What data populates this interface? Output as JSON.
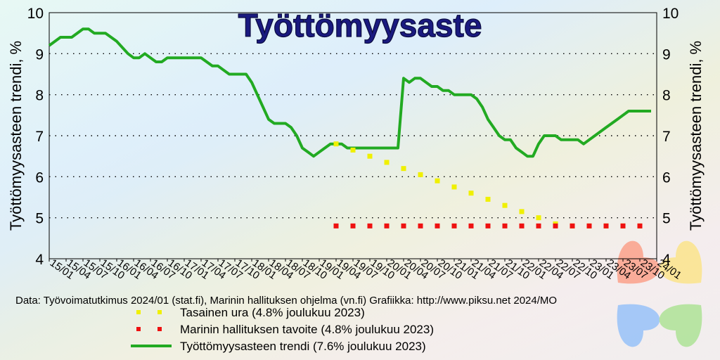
{
  "chart_data": {
    "type": "line",
    "title": "Työttömyysaste",
    "ylabel_left": "Työttömyysasteen trendi, %",
    "ylabel_right": "Työttömyysasteen trendi, %",
    "ylim": [
      4,
      10
    ],
    "yticks": [
      "4",
      "5",
      "6",
      "7",
      "8",
      "9",
      "10"
    ],
    "grid": true,
    "x_tick_labels": [
      "15/01",
      "15/04",
      "15/07",
      "15/10",
      "16/01",
      "16/04",
      "16/07",
      "16/10",
      "17/01",
      "17/04",
      "17/07",
      "17/10",
      "18/01",
      "18/04",
      "18/07",
      "18/10",
      "19/01",
      "19/04",
      "19/07",
      "19/10",
      "20/01",
      "20/04",
      "20/07",
      "20/10",
      "21/01",
      "21/04",
      "21/07",
      "21/10",
      "22/01",
      "22/04",
      "22/07",
      "22/10",
      "23/01",
      "23/04",
      "23/07",
      "23/10",
      "24/01"
    ],
    "x_start": "2015-01",
    "x_end": "2024-01",
    "series": [
      {
        "name": "Työttömyysasteen trendi (7.6% joulukuu 2023)",
        "style": "line",
        "color": "#22aa22",
        "x": [
          "2015-01",
          "2015-03",
          "2015-05",
          "2015-07",
          "2015-08",
          "2015-09",
          "2015-11",
          "2016-01",
          "2016-03",
          "2016-04",
          "2016-05",
          "2016-06",
          "2016-07",
          "2016-08",
          "2016-09",
          "2016-10",
          "2016-12",
          "2017-02",
          "2017-03",
          "2017-04",
          "2017-05",
          "2017-06",
          "2017-07",
          "2017-08",
          "2017-09",
          "2017-10",
          "2017-11",
          "2017-12",
          "2018-01",
          "2018-02",
          "2018-03",
          "2018-04",
          "2018-05",
          "2018-06",
          "2018-07",
          "2018-08",
          "2018-09",
          "2018-10",
          "2018-11",
          "2018-12",
          "2019-01",
          "2019-02",
          "2019-03",
          "2019-04",
          "2019-05",
          "2019-06",
          "2019-07",
          "2019-08",
          "2019-10",
          "2020-01",
          "2020-03",
          "2020-04",
          "2020-05",
          "2020-06",
          "2020-07",
          "2020-08",
          "2020-09",
          "2020-10",
          "2020-11",
          "2020-12",
          "2021-01",
          "2021-02",
          "2021-03",
          "2021-04",
          "2021-05",
          "2021-06",
          "2021-07",
          "2021-08",
          "2021-09",
          "2021-10",
          "2021-11",
          "2021-12",
          "2022-01",
          "2022-02",
          "2022-03",
          "2022-04",
          "2022-05",
          "2022-06",
          "2022-07",
          "2022-08",
          "2022-09",
          "2022-10",
          "2022-11",
          "2022-12",
          "2023-01",
          "2023-02",
          "2023-04",
          "2023-06",
          "2023-08",
          "2023-10",
          "2023-12"
        ],
        "y": [
          9.2,
          9.4,
          9.4,
          9.6,
          9.6,
          9.5,
          9.5,
          9.3,
          9.0,
          8.9,
          8.9,
          9.0,
          8.9,
          8.8,
          8.8,
          8.9,
          8.9,
          8.9,
          8.9,
          8.9,
          8.8,
          8.7,
          8.7,
          8.6,
          8.5,
          8.5,
          8.5,
          8.5,
          8.3,
          8.0,
          7.7,
          7.4,
          7.3,
          7.3,
          7.3,
          7.2,
          7.0,
          6.7,
          6.6,
          6.5,
          6.6,
          6.7,
          6.8,
          6.8,
          6.8,
          6.7,
          6.7,
          6.7,
          6.7,
          6.7,
          6.7,
          8.4,
          8.3,
          8.4,
          8.4,
          8.3,
          8.2,
          8.2,
          8.1,
          8.1,
          8.0,
          8.0,
          8.0,
          8.0,
          7.9,
          7.7,
          7.4,
          7.2,
          7.0,
          6.9,
          6.9,
          6.7,
          6.6,
          6.5,
          6.5,
          6.8,
          7.0,
          7.0,
          7.0,
          6.9,
          6.9,
          6.9,
          6.9,
          6.8,
          6.9,
          7.0,
          7.2,
          7.4,
          7.6,
          7.6,
          7.6
        ]
      },
      {
        "name": "Tasainen ura (4.8% joulukuu 2023)",
        "style": "dotted",
        "color": "#f0f000",
        "x": [
          "2019-04",
          "2019-07",
          "2019-10",
          "2020-01",
          "2020-04",
          "2020-07",
          "2020-10",
          "2021-01",
          "2021-04",
          "2021-07",
          "2021-10",
          "2022-01",
          "2022-04",
          "2022-07",
          "2022-10",
          "2023-01",
          "2023-04",
          "2023-07",
          "2023-10"
        ],
        "y": [
          6.8,
          6.65,
          6.5,
          6.35,
          6.2,
          6.05,
          5.9,
          5.75,
          5.6,
          5.45,
          5.3,
          5.15,
          5.0,
          4.85,
          4.8,
          4.8,
          4.8,
          4.8,
          4.8
        ]
      },
      {
        "name": "Marinin hallituksen tavoite (4.8% joulukuu 2023)",
        "style": "dotted",
        "color": "#ee1111",
        "x": [
          "2019-04",
          "2019-07",
          "2019-10",
          "2020-01",
          "2020-04",
          "2020-07",
          "2020-10",
          "2021-01",
          "2021-04",
          "2021-07",
          "2021-10",
          "2022-01",
          "2022-04",
          "2022-07",
          "2022-10",
          "2023-01",
          "2023-04",
          "2023-07",
          "2023-10"
        ],
        "y": [
          4.8,
          4.8,
          4.8,
          4.8,
          4.8,
          4.8,
          4.8,
          4.8,
          4.8,
          4.8,
          4.8,
          4.8,
          4.8,
          4.8,
          4.8,
          4.8,
          4.8,
          4.8,
          4.8
        ]
      }
    ],
    "legend_placement": "bottom-center",
    "source_text": "Data: Työvoimatutkimus 2024/01 (stat.fi), Marinin hallituksen ohjelma (vn.fi)  Grafiikka:  http://www.piksu.net     2024/MO"
  },
  "legend": [
    {
      "label": "Tasainen ura (4.8% joulukuu 2023)",
      "color": "#f0f000",
      "style": "dotted"
    },
    {
      "label": "Marinin hallituksen tavoite (4.8% joulukuu 2023)",
      "color": "#ee1111",
      "style": "dotted"
    },
    {
      "label": "Työttömyysasteen trendi (7.6% joulukuu 2023)",
      "color": "#22aa22",
      "style": "line"
    }
  ],
  "logo": {
    "colors": [
      "#ff7755",
      "#ffe055",
      "#66aaff",
      "#88dd66"
    ],
    "icon": "four-heart-clover-logo"
  }
}
